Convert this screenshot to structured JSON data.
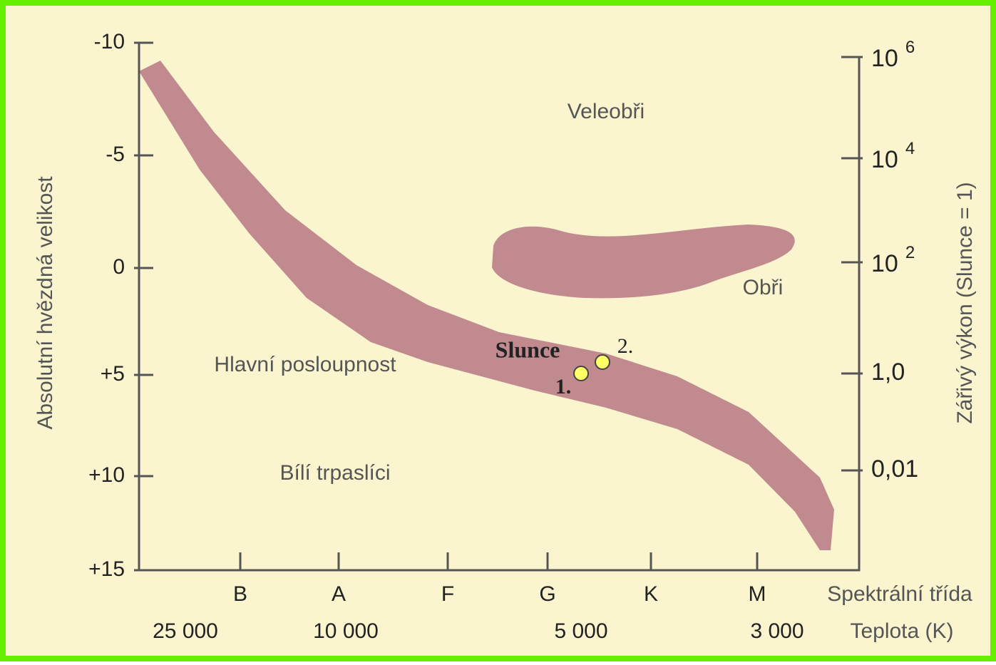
{
  "left_axis": {
    "label": "Absolutní hvězdná velikost",
    "ticks": [
      "-10",
      "-5",
      "0",
      "+5",
      "+10",
      "+15"
    ]
  },
  "right_axis": {
    "label": "Zářivý výkon (Slunce = 1)",
    "ticks": [
      {
        "base": "10",
        "exp": "6"
      },
      {
        "base": "10",
        "exp": "4"
      },
      {
        "base": "10",
        "exp": "2"
      },
      "1,0",
      "0,01"
    ]
  },
  "spectral_classes": [
    "B",
    "A",
    "F",
    "G",
    "K",
    "M"
  ],
  "spectral_label": "Spektrální třída",
  "temperatures": [
    "25 000",
    "10 000",
    "5 000",
    "3 000"
  ],
  "temperature_label": "Teplota (K)",
  "regions": [
    "Veleobři",
    "Obři",
    "Hlavní posloupnost",
    "Bílí trpaslíci"
  ],
  "sun": {
    "label": "Slunce",
    "points": [
      "1.",
      "2."
    ]
  }
}
